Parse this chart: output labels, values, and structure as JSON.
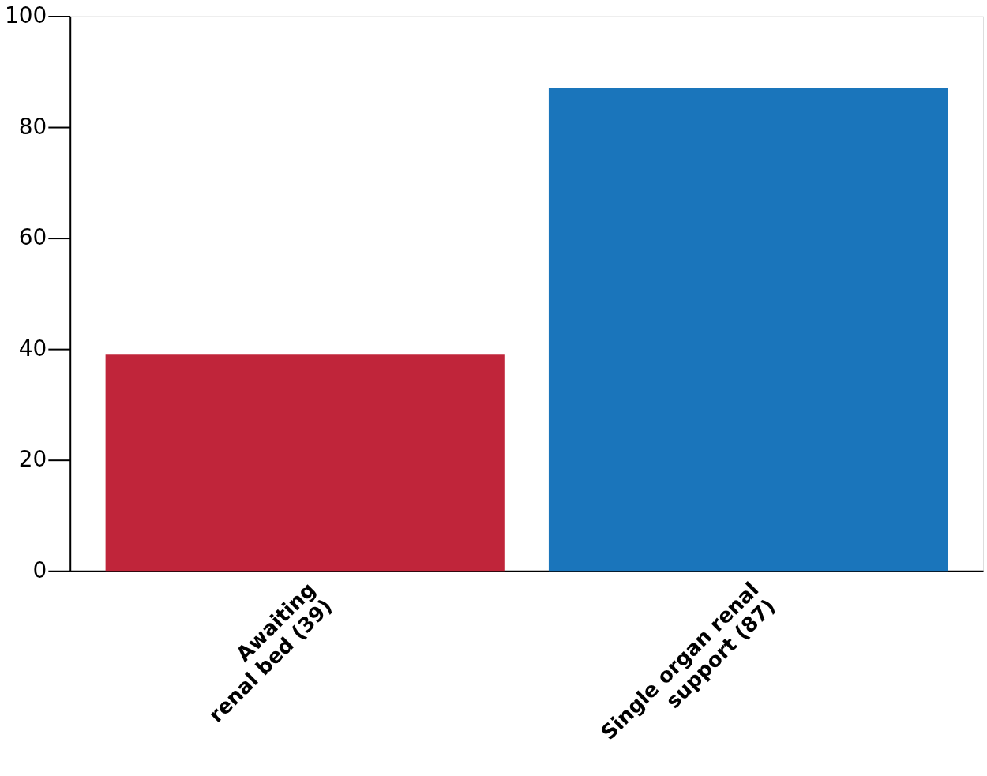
{
  "chart_data": {
    "type": "bar",
    "categories": [
      "Awaiting\nrenal bed (39)",
      "Single organ renal\nsupport (87)"
    ],
    "values": [
      39,
      87
    ],
    "colors": [
      "#c0253a",
      "#1a75bb"
    ],
    "ylim": [
      0,
      100
    ],
    "yticks": [
      0,
      20,
      40,
      60,
      80,
      100
    ],
    "grid": false
  }
}
